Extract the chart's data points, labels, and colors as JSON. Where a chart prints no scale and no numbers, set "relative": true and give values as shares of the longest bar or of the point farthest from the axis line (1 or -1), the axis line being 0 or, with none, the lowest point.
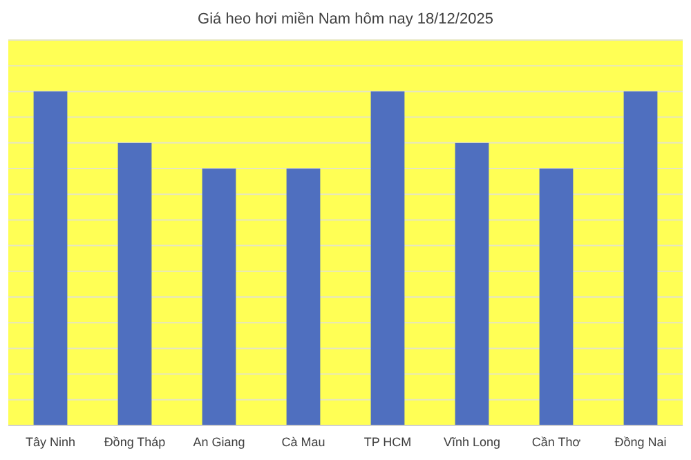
{
  "chart_data": {
    "type": "bar",
    "title": "Giá heo hơi miền Nam hôm nay 18/12/2025",
    "categories": [
      "Tây Ninh",
      "Đồng Tháp",
      "An Giang",
      "Cà Mau",
      "TP HCM",
      "Vĩnh Long",
      "Cần Thơ",
      "Đồng Nai"
    ],
    "values": [
      1,
      0.846,
      0.769,
      0.769,
      1,
      0.846,
      0.769,
      1
    ],
    "color": "#4f6fbf",
    "relative": true,
    "grid": "y"
  }
}
